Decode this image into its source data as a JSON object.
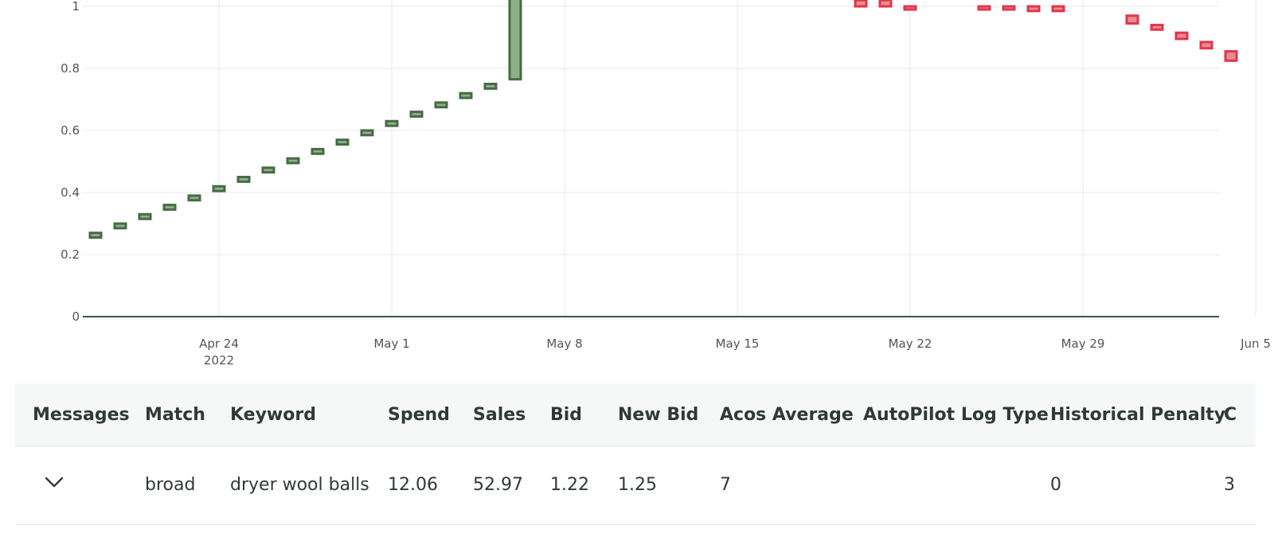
{
  "chart_data": {
    "type": "bar",
    "y_ticks": [
      0,
      0.2,
      0.4,
      0.6,
      0.8,
      1
    ],
    "ylim": [
      0,
      1
    ],
    "x_ticks": [
      {
        "date": "2022-04-24",
        "label": "Apr 24",
        "sublabel": "2022"
      },
      {
        "date": "2022-05-01",
        "label": "May 1",
        "sublabel": ""
      },
      {
        "date": "2022-05-08",
        "label": "May 8",
        "sublabel": ""
      },
      {
        "date": "2022-05-15",
        "label": "May 15",
        "sublabel": ""
      },
      {
        "date": "2022-05-22",
        "label": "May 22",
        "sublabel": ""
      },
      {
        "date": "2022-05-29",
        "label": "May 29",
        "sublabel": ""
      },
      {
        "date": "2022-06-05",
        "label": "Jun 5",
        "sublabel": ""
      }
    ],
    "xlim": [
      "2022-04-19",
      "2022-06-05"
    ],
    "colors": {
      "increase_fill": "#8fb08a",
      "increase_stroke": "#456b44",
      "decrease_fill": "#e98b93",
      "decrease_stroke": "#e0364a",
      "grid": "#e8e8e8",
      "zero_line": "#3e5550"
    },
    "series": [
      {
        "direction": "increase",
        "candles": [
          {
            "x": "2022-04-19",
            "low": 0.255,
            "high": 0.27
          },
          {
            "x": "2022-04-20",
            "low": 0.285,
            "high": 0.3
          },
          {
            "x": "2022-04-21",
            "low": 0.315,
            "high": 0.33
          },
          {
            "x": "2022-04-22",
            "low": 0.345,
            "high": 0.36
          },
          {
            "x": "2022-04-23",
            "low": 0.375,
            "high": 0.39
          },
          {
            "x": "2022-04-24",
            "low": 0.405,
            "high": 0.42
          },
          {
            "x": "2022-04-25",
            "low": 0.435,
            "high": 0.45
          },
          {
            "x": "2022-04-26",
            "low": 0.465,
            "high": 0.48
          },
          {
            "x": "2022-04-27",
            "low": 0.495,
            "high": 0.51
          },
          {
            "x": "2022-04-28",
            "low": 0.525,
            "high": 0.54
          },
          {
            "x": "2022-04-29",
            "low": 0.555,
            "high": 0.57
          },
          {
            "x": "2022-04-30",
            "low": 0.585,
            "high": 0.6
          },
          {
            "x": "2022-05-01",
            "low": 0.615,
            "high": 0.63
          },
          {
            "x": "2022-05-02",
            "low": 0.645,
            "high": 0.66
          },
          {
            "x": "2022-05-03",
            "low": 0.675,
            "high": 0.69
          },
          {
            "x": "2022-05-04",
            "low": 0.705,
            "high": 0.72
          },
          {
            "x": "2022-05-05",
            "low": 0.735,
            "high": 0.75
          },
          {
            "x": "2022-05-06",
            "low": 0.765,
            "high": 1.05
          }
        ]
      },
      {
        "direction": "decrease",
        "candles": [
          {
            "x": "2022-05-20",
            "low": 1.0,
            "high": 1.02
          },
          {
            "x": "2022-05-21",
            "low": 1.0,
            "high": 1.02
          },
          {
            "x": "2022-05-22",
            "low": 0.99,
            "high": 1.0
          },
          {
            "x": "2022-05-25",
            "low": 0.99,
            "high": 1.0
          },
          {
            "x": "2022-05-26",
            "low": 0.99,
            "high": 1.0
          },
          {
            "x": "2022-05-27",
            "low": 0.985,
            "high": 1.0
          },
          {
            "x": "2022-05-28",
            "low": 0.985,
            "high": 1.0
          },
          {
            "x": "2022-05-31",
            "low": 0.945,
            "high": 0.97
          },
          {
            "x": "2022-06-01",
            "low": 0.925,
            "high": 0.94
          },
          {
            "x": "2022-06-02",
            "low": 0.895,
            "high": 0.915
          },
          {
            "x": "2022-06-03",
            "low": 0.865,
            "high": 0.885
          },
          {
            "x": "2022-06-04",
            "low": 0.825,
            "high": 0.855
          }
        ]
      }
    ]
  },
  "table": {
    "columns": [
      "Messages",
      "Match",
      "Keyword",
      "Spend",
      "Sales",
      "Bid",
      "New Bid",
      "Acos Average",
      "AutoPilot Log Type",
      "Historical Penalty",
      "C"
    ],
    "rows": [
      {
        "expand_icon": "chevron-down-icon",
        "match": "broad",
        "keyword": "dryer wool balls",
        "spend": "12.06",
        "sales": "52.97",
        "bid": "1.22",
        "new_bid": "1.25",
        "acos_average": "7",
        "autopilot_log_type": "",
        "historical_penalty": "0",
        "truncated": "3"
      }
    ]
  }
}
